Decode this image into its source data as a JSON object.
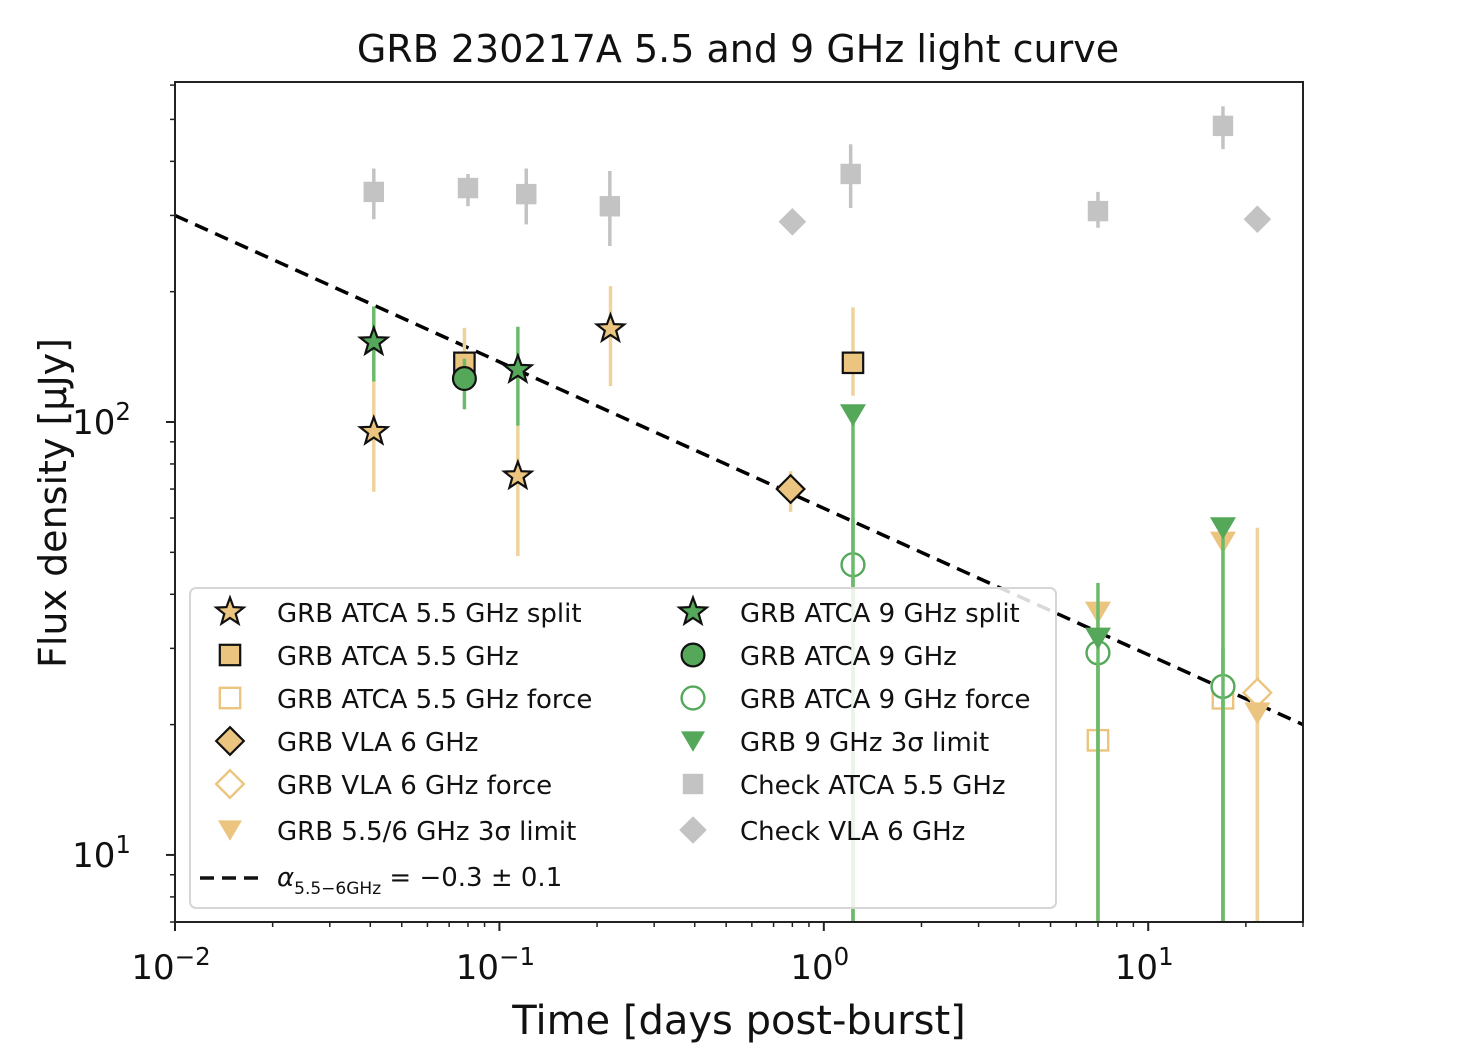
{
  "chart_data": {
    "type": "scatter",
    "title": "GRB 230217A 5.5 and 9 GHz light curve",
    "xlabel": "Time [days post-burst]",
    "ylabel": "Flux density [μJy]",
    "xscale": "log",
    "yscale": "log",
    "xlim": [
      0.01,
      30
    ],
    "ylim": [
      7,
      610
    ],
    "xticks": [
      {
        "value": 0.01,
        "base": "10",
        "exp": "−2"
      },
      {
        "value": 0.1,
        "base": "10",
        "exp": "−1"
      },
      {
        "value": 1,
        "base": "10",
        "exp": "0"
      },
      {
        "value": 10,
        "base": "10",
        "exp": "1"
      }
    ],
    "yticks": [
      {
        "value": 10,
        "base": "10",
        "exp": "1"
      },
      {
        "value": 100,
        "base": "10",
        "exp": "2"
      }
    ],
    "grid": false,
    "legend_placement": "lower-left",
    "colors": {
      "tan": "#ebc57f",
      "tan_err": "#efd39c",
      "green": "#55a85a",
      "green_err": "#6cba6c",
      "gray": "#c3c3c3"
    },
    "fit_line": {
      "label_symbol": "α",
      "label_sub": "5.5−6GHz",
      "label_rest": " = −0.3 ± 0.1",
      "slope": -0.34,
      "x": [
        0.01,
        30
      ],
      "y": [
        300,
        20
      ]
    },
    "series": [
      {
        "name": "GRB ATCA 5.5 GHz split",
        "marker": "star",
        "color": "tan",
        "filled": true,
        "points": [
          {
            "x": 0.041,
            "y": 95,
            "err": [
              69,
              125
            ]
          },
          {
            "x": 0.114,
            "y": 75,
            "err": [
              49,
              98
            ]
          },
          {
            "x": 0.22,
            "y": 164,
            "err": [
              121,
              206
            ]
          }
        ]
      },
      {
        "name": "GRB ATCA 5.5 GHz",
        "marker": "square",
        "color": "tan",
        "filled": true,
        "points": [
          {
            "x": 0.078,
            "y": 137,
            "err": [
              125,
              165
            ]
          },
          {
            "x": 1.23,
            "y": 137,
            "err": [
              115,
              184
            ]
          }
        ]
      },
      {
        "name": "GRB ATCA 5.5 GHz force",
        "marker": "square",
        "color": "tan",
        "filled": false,
        "points": [
          {
            "x": 7.0,
            "y": 18.4,
            "err": [
              null,
              29
            ]
          },
          {
            "x": 17.0,
            "y": 23,
            "err": [
              null,
              26
            ]
          }
        ]
      },
      {
        "name": "GRB VLA 6 GHz",
        "marker": "diamond",
        "color": "tan",
        "filled": true,
        "points": [
          {
            "x": 0.79,
            "y": 70,
            "err": [
              62,
              77
            ]
          }
        ]
      },
      {
        "name": "GRB VLA 6 GHz force",
        "marker": "diamond",
        "color": "tan",
        "filled": false,
        "points": [
          {
            "x": 21.7,
            "y": 23.7,
            "err": [
              null,
              57
            ]
          }
        ]
      },
      {
        "name": "GRB 5.5/6 GHz 3σ limit",
        "marker": "tri-down",
        "color": "tan",
        "filled": true,
        "limit": true,
        "points": [
          {
            "x": 7.0,
            "y": 36.4
          },
          {
            "x": 17.0,
            "y": 52.8
          },
          {
            "x": 21.7,
            "y": 21.3
          }
        ]
      },
      {
        "name": "GRB ATCA 9 GHz split",
        "marker": "star",
        "color": "green",
        "filled": true,
        "points": [
          {
            "x": 0.041,
            "y": 153,
            "err": [
              124,
              185
            ]
          },
          {
            "x": 0.114,
            "y": 132,
            "err": [
              98,
              166
            ]
          }
        ]
      },
      {
        "name": "GRB ATCA 9 GHz",
        "marker": "circle",
        "color": "green",
        "filled": true,
        "points": [
          {
            "x": 0.078,
            "y": 126,
            "err": [
              107,
              140
            ]
          }
        ]
      },
      {
        "name": "GRB ATCA 9 GHz force",
        "marker": "circle",
        "color": "green",
        "filled": false,
        "points": [
          {
            "x": 1.23,
            "y": 46.8,
            "err": [
              null,
              60
            ]
          },
          {
            "x": 7.0,
            "y": 29.3,
            "err": [
              16.6,
              42.5
            ]
          },
          {
            "x": 17.0,
            "y": 24.5,
            "err": [
              null,
              30
            ]
          }
        ]
      },
      {
        "name": "GRB 9 GHz 3σ limit",
        "marker": "tri-down",
        "color": "green",
        "filled": true,
        "limit": true,
        "points": [
          {
            "x": 1.23,
            "y": 104
          },
          {
            "x": 7.0,
            "y": 31.7
          },
          {
            "x": 17.0,
            "y": 57
          }
        ]
      },
      {
        "name": "Check ATCA 5.5 GHz",
        "marker": "square",
        "color": "gray",
        "filled": true,
        "plain": true,
        "points": [
          {
            "x": 0.041,
            "y": 340,
            "err": [
              294,
              385
            ]
          },
          {
            "x": 0.08,
            "y": 347,
            "err": [
              315,
              374
            ]
          },
          {
            "x": 0.121,
            "y": 336,
            "err": [
              286,
              385
            ]
          },
          {
            "x": 0.219,
            "y": 315,
            "err": [
              255,
              380
            ]
          },
          {
            "x": 1.21,
            "y": 374,
            "err": [
              312,
              438
            ]
          },
          {
            "x": 7.0,
            "y": 307,
            "err": [
              281,
              340
            ]
          },
          {
            "x": 17.0,
            "y": 483,
            "err": [
              427,
              536
            ]
          }
        ]
      },
      {
        "name": "Check VLA 6 GHz",
        "marker": "diamond",
        "color": "gray",
        "filled": true,
        "plain": true,
        "points": [
          {
            "x": 0.8,
            "y": 290
          },
          {
            "x": 21.7,
            "y": 294
          }
        ]
      }
    ]
  }
}
